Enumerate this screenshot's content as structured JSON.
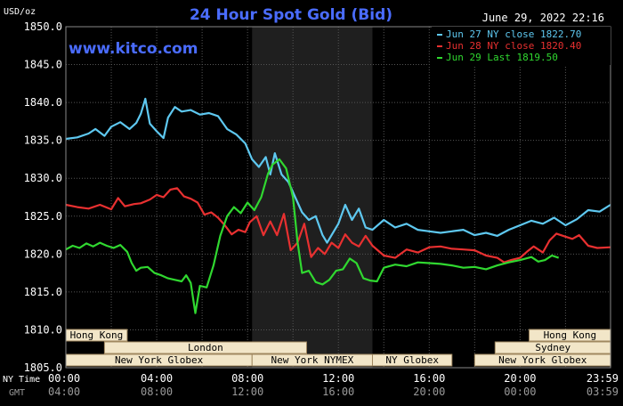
{
  "header": {
    "unit": "USD/oz",
    "title": "24 Hour Spot Gold (Bid)",
    "timestamp": "June 29, 2022 22:16",
    "watermark": "www.kitco.com"
  },
  "colors": {
    "background": "#000000",
    "plot_background": "#000000",
    "shade": "#1f1f1f",
    "grid": "#555555",
    "title": "#4a6cff",
    "watermark": "#4a6cff",
    "text": "#ffffff",
    "tick_text": "#ffffff",
    "gmt_text": "#9a9a9a",
    "session_fill": "#f2e6c8",
    "session_stroke": "#a08860",
    "session_text": "#000000"
  },
  "sessions": [
    {
      "label": "Hong Kong",
      "start": 0.0,
      "end": 2.7,
      "row": 0
    },
    {
      "label": "Hong Kong",
      "start": 20.4,
      "end": 23.99,
      "row": 0
    },
    {
      "label": "London",
      "start": 1.7,
      "end": 10.6,
      "row": 1
    },
    {
      "label": "Sydney",
      "start": 18.9,
      "end": 23.99,
      "row": 1
    },
    {
      "label": "New York Globex",
      "start": 0.0,
      "end": 8.2,
      "row": 2
    },
    {
      "label": "New York NYMEX",
      "start": 8.2,
      "end": 13.5,
      "row": 2
    },
    {
      "label": "NY Globex",
      "start": 13.5,
      "end": 17.0,
      "row": 2
    },
    {
      "label": "New York Globex",
      "start": 18.0,
      "end": 23.99,
      "row": 2
    }
  ],
  "shade_range": [
    8.2,
    13.5
  ],
  "xaxis": {
    "ny_label": "NY Time",
    "gmt_label": "GMT",
    "ticks": [
      {
        "x": 0,
        "ny": "00:00",
        "gmt": "04:00"
      },
      {
        "x": 4,
        "ny": "04:00",
        "gmt": "08:00"
      },
      {
        "x": 8,
        "ny": "08:00",
        "gmt": "12:00"
      },
      {
        "x": 12,
        "ny": "12:00",
        "gmt": "16:00"
      },
      {
        "x": 16,
        "ny": "16:00",
        "gmt": "20:00"
      },
      {
        "x": 20,
        "ny": "20:00",
        "gmt": "00:00"
      },
      {
        "x": 23.983,
        "ny": "23:59",
        "gmt": "03:59"
      }
    ]
  },
  "chart_data": {
    "type": "line",
    "title": "24 Hour Spot Gold (Bid)",
    "ylabel": "USD/oz",
    "xlabel": "NY Time",
    "xlim": [
      0,
      23.983
    ],
    "ylim": [
      1805,
      1850
    ],
    "yticks": [
      1805,
      1810,
      1815,
      1820,
      1825,
      1830,
      1835,
      1840,
      1845,
      1850
    ],
    "ytick_labels": [
      "1805.0",
      "1810.0",
      "1815.0",
      "1820.0",
      "1825.0",
      "1830.0",
      "1835.0",
      "1840.0",
      "1845.0",
      "1850.0"
    ],
    "grid": true,
    "legend": "top-right",
    "series": [
      {
        "name": "Jun 27 NY close 1822.70",
        "color": "#5ec8f0",
        "points": [
          [
            0,
            1835.2
          ],
          [
            0.5,
            1835.4
          ],
          [
            1,
            1835.9
          ],
          [
            1.3,
            1836.5
          ],
          [
            1.7,
            1835.6
          ],
          [
            2.0,
            1836.8
          ],
          [
            2.4,
            1837.4
          ],
          [
            2.8,
            1836.5
          ],
          [
            3.1,
            1837.3
          ],
          [
            3.3,
            1838.5
          ],
          [
            3.5,
            1840.5
          ],
          [
            3.7,
            1837.2
          ],
          [
            4.0,
            1836.2
          ],
          [
            4.3,
            1835.3
          ],
          [
            4.5,
            1838.0
          ],
          [
            4.8,
            1839.4
          ],
          [
            5.1,
            1838.8
          ],
          [
            5.5,
            1839.0
          ],
          [
            5.9,
            1838.4
          ],
          [
            6.3,
            1838.6
          ],
          [
            6.7,
            1838.2
          ],
          [
            7.1,
            1836.5
          ],
          [
            7.5,
            1835.8
          ],
          [
            7.9,
            1834.6
          ],
          [
            8.2,
            1832.5
          ],
          [
            8.5,
            1831.5
          ],
          [
            8.8,
            1832.8
          ],
          [
            9.0,
            1830.5
          ],
          [
            9.2,
            1833.3
          ],
          [
            9.5,
            1830.5
          ],
          [
            9.8,
            1829.5
          ],
          [
            10.1,
            1827.5
          ],
          [
            10.4,
            1825.5
          ],
          [
            10.7,
            1824.5
          ],
          [
            11.0,
            1825.0
          ],
          [
            11.3,
            1822.5
          ],
          [
            11.5,
            1821.5
          ],
          [
            11.8,
            1823.0
          ],
          [
            12.0,
            1824.0
          ],
          [
            12.3,
            1826.5
          ],
          [
            12.6,
            1824.5
          ],
          [
            12.9,
            1826.0
          ],
          [
            13.2,
            1823.5
          ],
          [
            13.5,
            1823.2
          ],
          [
            14.0,
            1824.5
          ],
          [
            14.5,
            1823.5
          ],
          [
            15.0,
            1824.0
          ],
          [
            15.5,
            1823.2
          ],
          [
            16.0,
            1823.0
          ],
          [
            16.5,
            1822.8
          ],
          [
            17.0,
            1823.0
          ],
          [
            17.5,
            1823.2
          ],
          [
            18.0,
            1822.5
          ],
          [
            18.5,
            1822.8
          ],
          [
            19.0,
            1822.4
          ],
          [
            19.5,
            1823.2
          ],
          [
            20.0,
            1823.8
          ],
          [
            20.5,
            1824.4
          ],
          [
            21.0,
            1824.0
          ],
          [
            21.5,
            1824.8
          ],
          [
            22.0,
            1823.8
          ],
          [
            22.5,
            1824.6
          ],
          [
            23.0,
            1825.8
          ],
          [
            23.5,
            1825.6
          ],
          [
            23.983,
            1826.5
          ]
        ]
      },
      {
        "name": "Jun 28 NY close 1820.40",
        "color": "#e83030",
        "points": [
          [
            0,
            1826.5
          ],
          [
            0.5,
            1826.2
          ],
          [
            1,
            1826.0
          ],
          [
            1.5,
            1826.5
          ],
          [
            2.0,
            1825.9
          ],
          [
            2.3,
            1827.4
          ],
          [
            2.6,
            1826.3
          ],
          [
            3.0,
            1826.6
          ],
          [
            3.3,
            1826.7
          ],
          [
            3.7,
            1827.2
          ],
          [
            4.0,
            1827.8
          ],
          [
            4.3,
            1827.5
          ],
          [
            4.6,
            1828.5
          ],
          [
            4.9,
            1828.7
          ],
          [
            5.2,
            1827.6
          ],
          [
            5.5,
            1827.3
          ],
          [
            5.8,
            1826.8
          ],
          [
            6.1,
            1825.2
          ],
          [
            6.4,
            1825.5
          ],
          [
            6.7,
            1824.8
          ],
          [
            7.0,
            1823.8
          ],
          [
            7.3,
            1822.6
          ],
          [
            7.6,
            1823.2
          ],
          [
            7.9,
            1822.9
          ],
          [
            8.1,
            1824.2
          ],
          [
            8.4,
            1825.0
          ],
          [
            8.7,
            1822.5
          ],
          [
            9.0,
            1824.3
          ],
          [
            9.3,
            1822.5
          ],
          [
            9.6,
            1825.3
          ],
          [
            9.9,
            1820.5
          ],
          [
            10.2,
            1821.5
          ],
          [
            10.5,
            1824.0
          ],
          [
            10.8,
            1819.6
          ],
          [
            11.1,
            1820.8
          ],
          [
            11.4,
            1820.0
          ],
          [
            11.7,
            1821.5
          ],
          [
            12.0,
            1820.8
          ],
          [
            12.3,
            1822.6
          ],
          [
            12.6,
            1821.5
          ],
          [
            12.9,
            1821.0
          ],
          [
            13.2,
            1822.4
          ],
          [
            13.5,
            1821.1
          ],
          [
            14.0,
            1819.8
          ],
          [
            14.5,
            1819.5
          ],
          [
            15.0,
            1820.6
          ],
          [
            15.5,
            1820.2
          ],
          [
            16.0,
            1820.9
          ],
          [
            16.5,
            1821.0
          ],
          [
            17.0,
            1820.7
          ],
          [
            17.5,
            1820.6
          ],
          [
            18.0,
            1820.5
          ],
          [
            18.5,
            1819.8
          ],
          [
            19.0,
            1819.5
          ],
          [
            19.3,
            1818.9
          ],
          [
            19.6,
            1819.2
          ],
          [
            20.0,
            1819.5
          ],
          [
            20.3,
            1820.3
          ],
          [
            20.6,
            1821.0
          ],
          [
            21.0,
            1820.2
          ],
          [
            21.3,
            1821.8
          ],
          [
            21.6,
            1822.7
          ],
          [
            22.0,
            1822.3
          ],
          [
            22.3,
            1822.0
          ],
          [
            22.6,
            1822.5
          ],
          [
            23.0,
            1821.1
          ],
          [
            23.4,
            1820.8
          ],
          [
            23.983,
            1820.9
          ]
        ]
      },
      {
        "name": "Jun 29 Last 1819.50",
        "color": "#30d830",
        "points": [
          [
            0,
            1820.6
          ],
          [
            0.3,
            1821.1
          ],
          [
            0.6,
            1820.8
          ],
          [
            0.9,
            1821.4
          ],
          [
            1.2,
            1821.0
          ],
          [
            1.5,
            1821.5
          ],
          [
            1.8,
            1821.1
          ],
          [
            2.1,
            1820.8
          ],
          [
            2.4,
            1821.2
          ],
          [
            2.7,
            1820.3
          ],
          [
            2.9,
            1818.8
          ],
          [
            3.1,
            1817.8
          ],
          [
            3.3,
            1818.2
          ],
          [
            3.6,
            1818.3
          ],
          [
            3.9,
            1817.5
          ],
          [
            4.2,
            1817.2
          ],
          [
            4.5,
            1816.8
          ],
          [
            4.8,
            1816.6
          ],
          [
            5.1,
            1816.4
          ],
          [
            5.3,
            1817.2
          ],
          [
            5.5,
            1816.2
          ],
          [
            5.7,
            1812.2
          ],
          [
            5.9,
            1815.8
          ],
          [
            6.2,
            1815.6
          ],
          [
            6.5,
            1818.5
          ],
          [
            6.8,
            1822.4
          ],
          [
            7.1,
            1825.0
          ],
          [
            7.4,
            1826.2
          ],
          [
            7.7,
            1825.4
          ],
          [
            8.0,
            1826.8
          ],
          [
            8.3,
            1825.8
          ],
          [
            8.6,
            1827.5
          ],
          [
            8.9,
            1830.6
          ],
          [
            9.1,
            1831.8
          ],
          [
            9.4,
            1832.5
          ],
          [
            9.7,
            1831.3
          ],
          [
            10.0,
            1827.5
          ],
          [
            10.2,
            1821.6
          ],
          [
            10.4,
            1817.5
          ],
          [
            10.7,
            1817.8
          ],
          [
            11.0,
            1816.3
          ],
          [
            11.3,
            1816.0
          ],
          [
            11.6,
            1816.6
          ],
          [
            11.9,
            1817.8
          ],
          [
            12.2,
            1818.0
          ],
          [
            12.5,
            1819.4
          ],
          [
            12.8,
            1818.8
          ],
          [
            13.1,
            1816.8
          ],
          [
            13.4,
            1816.5
          ],
          [
            13.7,
            1816.4
          ],
          [
            14.0,
            1818.2
          ],
          [
            14.5,
            1818.6
          ],
          [
            15.0,
            1818.4
          ],
          [
            15.5,
            1818.9
          ],
          [
            16.0,
            1818.8
          ],
          [
            16.5,
            1818.7
          ],
          [
            17.0,
            1818.5
          ],
          [
            17.5,
            1818.2
          ],
          [
            18.0,
            1818.3
          ],
          [
            18.5,
            1818.0
          ],
          [
            19.0,
            1818.5
          ],
          [
            19.5,
            1818.9
          ],
          [
            20.0,
            1819.2
          ],
          [
            20.5,
            1819.6
          ],
          [
            20.8,
            1819.0
          ],
          [
            21.1,
            1819.2
          ],
          [
            21.4,
            1819.8
          ],
          [
            21.7,
            1819.5
          ]
        ]
      }
    ]
  }
}
